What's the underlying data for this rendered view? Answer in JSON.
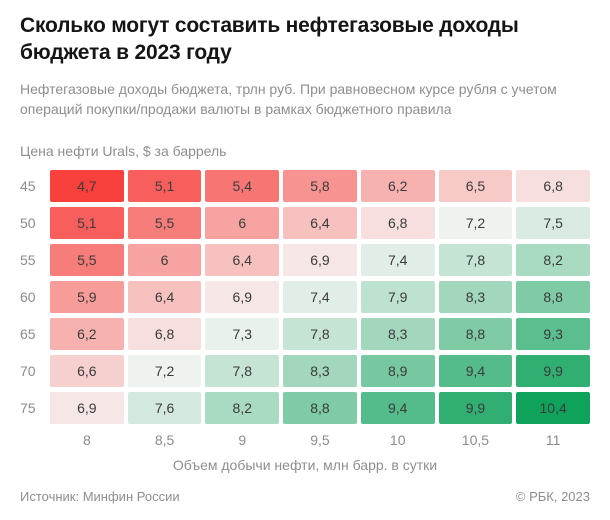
{
  "header": {
    "title": "Сколько могут составить нефтегазовые доходы бюджета в 2023 году",
    "subtitle": "Нефтегазовые доходы бюджета, трлн руб. При равновесном курсе рубля с учетом операций покупки/продажи валюты в рамках бюджетного правила"
  },
  "chart_data": {
    "type": "heatmap",
    "title": "Сколько могут составить нефтегазовые доходы бюджета в 2023 году",
    "ylabel": "Цена нефти Urals, $ за баррель",
    "xlabel": "Объем добычи нефти, млн барр. в сутки",
    "row_labels": [
      "45",
      "50",
      "55",
      "60",
      "65",
      "70",
      "75"
    ],
    "col_labels": [
      "8",
      "8,5",
      "9",
      "9,5",
      "10",
      "10,5",
      "11"
    ],
    "values": [
      [
        4.7,
        5.1,
        5.4,
        5.8,
        6.2,
        6.5,
        6.8
      ],
      [
        5.1,
        5.5,
        6.0,
        6.4,
        6.8,
        7.2,
        7.5
      ],
      [
        5.5,
        6.0,
        6.4,
        6.9,
        7.4,
        7.8,
        8.2
      ],
      [
        5.9,
        6.4,
        6.9,
        7.4,
        7.9,
        8.3,
        8.8
      ],
      [
        6.2,
        6.8,
        7.3,
        7.8,
        8.3,
        8.8,
        9.3
      ],
      [
        6.6,
        7.2,
        7.8,
        8.3,
        8.9,
        9.4,
        9.9
      ],
      [
        6.9,
        7.6,
        8.2,
        8.8,
        9.4,
        9.9,
        10.4
      ]
    ],
    "display": [
      [
        "4,7",
        "5,1",
        "5,4",
        "5,8",
        "6,2",
        "6,5",
        "6,8"
      ],
      [
        "5,1",
        "5,5",
        "6",
        "6,4",
        "6,8",
        "7,2",
        "7,5"
      ],
      [
        "5,5",
        "6",
        "6,4",
        "6,9",
        "7,4",
        "7,8",
        "8,2"
      ],
      [
        "5,9",
        "6,4",
        "6,9",
        "7,4",
        "7,9",
        "8,3",
        "8,8"
      ],
      [
        "6,2",
        "6,8",
        "7,3",
        "7,8",
        "8,3",
        "8,8",
        "9,3"
      ],
      [
        "6,6",
        "7,2",
        "7,8",
        "8,3",
        "8,9",
        "9,4",
        "9,9"
      ],
      [
        "6,9",
        "7,6",
        "8,2",
        "8,8",
        "9,4",
        "9,9",
        "10,4"
      ]
    ],
    "color_scale": {
      "min": 4.7,
      "mid": 7.1,
      "max": 10.4,
      "red": "#f8413d",
      "white": "#f6f6f5",
      "green": "#0ea25b"
    },
    "legend": "none",
    "grid": false
  },
  "footer": {
    "source": "Источник: Минфин России",
    "copyright": "© РБК, 2023"
  }
}
